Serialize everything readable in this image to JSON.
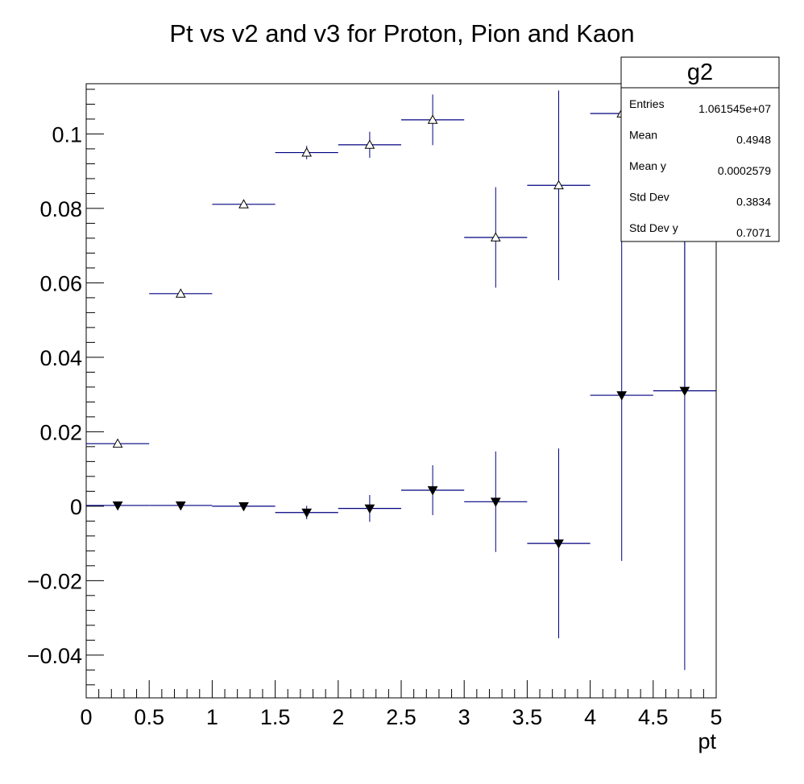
{
  "chart_data": {
    "type": "scatter",
    "title": "Pt vs v2 and v3 for Proton, Pion and Kaon",
    "xlabel": "pt",
    "ylabel": "",
    "xlim": [
      0,
      5
    ],
    "ylim": [
      -0.0515,
      0.1135
    ],
    "grid": false,
    "x_ticks": [
      {
        "value": 0,
        "label": "0"
      },
      {
        "value": 0.5,
        "label": "0.5"
      },
      {
        "value": 1,
        "label": "1"
      },
      {
        "value": 1.5,
        "label": "1.5"
      },
      {
        "value": 2,
        "label": "2"
      },
      {
        "value": 2.5,
        "label": "2.5"
      },
      {
        "value": 3,
        "label": "3"
      },
      {
        "value": 3.5,
        "label": "3.5"
      },
      {
        "value": 4,
        "label": "4"
      },
      {
        "value": 4.5,
        "label": "4.5"
      },
      {
        "value": 5,
        "label": "5"
      }
    ],
    "y_ticks": [
      {
        "value": 0.1,
        "label": "0.1"
      },
      {
        "value": 0.08,
        "label": "0.08"
      },
      {
        "value": 0.06,
        "label": "0.06"
      },
      {
        "value": 0.04,
        "label": "0.04"
      },
      {
        "value": 0.02,
        "label": "0.02"
      },
      {
        "value": 0,
        "label": "0"
      },
      {
        "value": -0.02,
        "label": "−0.02"
      },
      {
        "value": -0.04,
        "label": "−0.04"
      }
    ],
    "series": [
      {
        "marker": "open-triangle-up",
        "color": "#000000",
        "bar_color": "#000080",
        "points": [
          {
            "x": 0.25,
            "y": 0.0168,
            "xerr": 0.25,
            "yerr": 0.0004
          },
          {
            "x": 0.75,
            "y": 0.0571,
            "xerr": 0.25,
            "yerr": 0.0005
          },
          {
            "x": 1.25,
            "y": 0.0811,
            "xerr": 0.25,
            "yerr": 0.0008
          },
          {
            "x": 1.75,
            "y": 0.095,
            "xerr": 0.25,
            "yerr": 0.0018
          },
          {
            "x": 2.25,
            "y": 0.0971,
            "xerr": 0.25,
            "yerr": 0.0035
          },
          {
            "x": 2.75,
            "y": 0.1038,
            "xerr": 0.25,
            "yerr": 0.0068
          },
          {
            "x": 3.25,
            "y": 0.0722,
            "xerr": 0.25,
            "yerr": 0.0135
          },
          {
            "x": 3.75,
            "y": 0.0862,
            "xerr": 0.25,
            "yerr": 0.0255
          },
          {
            "x": 4.25,
            "y": 0.1055,
            "xerr": 0.25,
            "yerr": 0.0
          },
          {
            "x": 4.75,
            "y": 0.0,
            "xerr": 0.0,
            "yerr": 0.0,
            "hidden": true
          }
        ]
      },
      {
        "marker": "filled-triangle-down",
        "color": "#000000",
        "bar_color": "#000080",
        "points": [
          {
            "x": 0.25,
            "y": 0.0002,
            "xerr": 0.25,
            "yerr": 0.0004
          },
          {
            "x": 0.75,
            "y": 0.0002,
            "xerr": 0.25,
            "yerr": 0.0006
          },
          {
            "x": 1.25,
            "y": 0.0,
            "xerr": 0.25,
            "yerr": 0.0009
          },
          {
            "x": 1.75,
            "y": -0.0017,
            "xerr": 0.25,
            "yerr": 0.0018
          },
          {
            "x": 2.25,
            "y": -0.0006,
            "xerr": 0.25,
            "yerr": 0.0036
          },
          {
            "x": 2.75,
            "y": 0.0043,
            "xerr": 0.25,
            "yerr": 0.0067
          },
          {
            "x": 3.25,
            "y": 0.0012,
            "xerr": 0.25,
            "yerr": 0.0135
          },
          {
            "x": 3.75,
            "y": -0.01,
            "xerr": 0.25,
            "yerr": 0.0255
          },
          {
            "x": 4.25,
            "y": 0.0298,
            "xerr": 0.25,
            "yerr": 0.0445
          },
          {
            "x": 4.75,
            "y": 0.031,
            "xerr": 0.25,
            "yerr": 0.075
          }
        ]
      }
    ],
    "extra_error_bars": [
      {
        "x": 4.75,
        "y_low": 0.031,
        "y_high": 0.071
      }
    ]
  },
  "stats_box": {
    "title": "g2",
    "rows": [
      {
        "label": "Entries",
        "value": "1.061545e+07"
      },
      {
        "label": "Mean",
        "value": "0.4948"
      },
      {
        "label": "Mean y",
        "value": "0.0002579"
      },
      {
        "label": "Std Dev",
        "value": "0.3834"
      },
      {
        "label": "Std Dev y",
        "value": "0.7071"
      }
    ]
  }
}
